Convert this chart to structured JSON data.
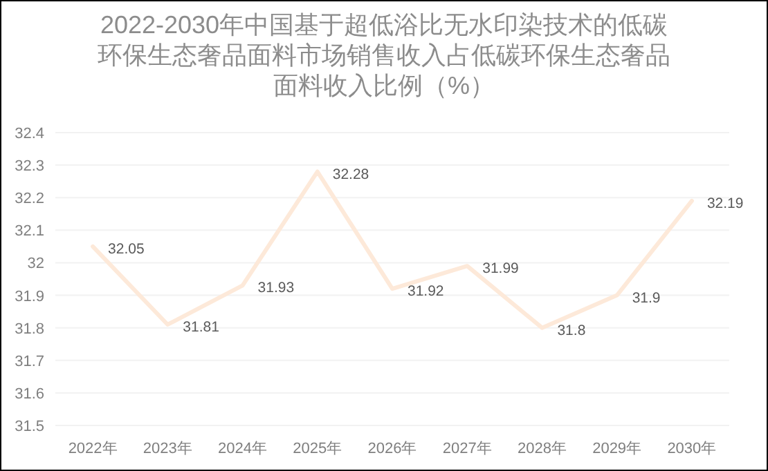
{
  "chart_data": {
    "type": "line",
    "title": "2022-2030年中国基于超低浴比无水印染技术的低碳环保生态奢品面料市场销售收入占低碳环保生态奢品面料收入比例（%）",
    "categories": [
      "2022年",
      "2023年",
      "2024年",
      "2025年",
      "2026年",
      "2027年",
      "2028年",
      "2029年",
      "2030年"
    ],
    "series": [
      {
        "color": "#fde9d9",
        "values": [
          32.05,
          31.81,
          31.93,
          32.28,
          31.92,
          31.99,
          31.8,
          31.9,
          32.19
        ]
      }
    ],
    "ylim": [
      31.5,
      32.4
    ],
    "yticks": [
      31.5,
      31.6,
      31.7,
      31.8,
      31.9,
      32,
      32.1,
      32.2,
      32.3,
      32.4
    ],
    "grid": "y",
    "data_labels": true,
    "marker": "none",
    "line_style": "solid"
  }
}
